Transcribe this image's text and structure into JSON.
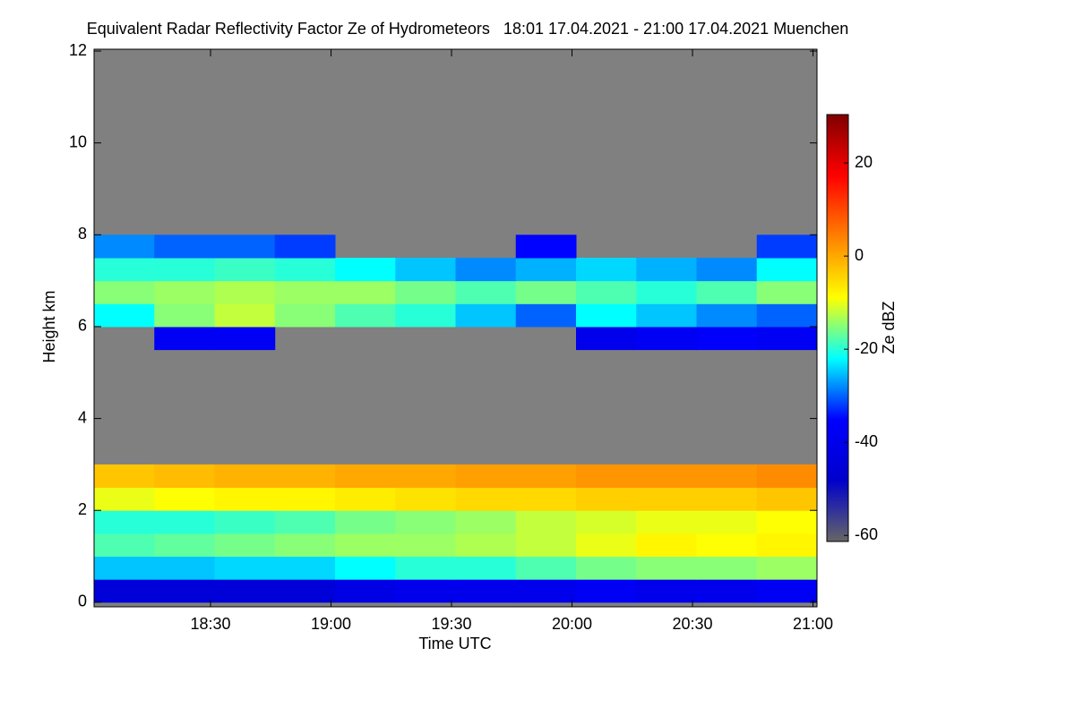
{
  "chart_data": {
    "type": "heatmap",
    "title": "Equivalent Radar Reflectivity Factor Ze of Hydrometeors   18:01 17.04.2021 - 21:00 17.04.2021 Muenchen",
    "x_label": "Time UTC",
    "y_label": "Height km",
    "colorbar_label": "Ze dBZ",
    "x": [
      1081,
      1096,
      1111,
      1126,
      1141,
      1156,
      1171,
      1186,
      1201,
      1216,
      1231,
      1246,
      1261
    ],
    "y": [
      0,
      0.5,
      1,
      1.5,
      2,
      2.5,
      3,
      3.5,
      4,
      4.5,
      5,
      5.5,
      6,
      6.5,
      7,
      7.5,
      8
    ],
    "z": [
      [
        -45,
        -45,
        -45,
        -45,
        -42,
        -40,
        -40,
        -40,
        -38,
        -40,
        -40,
        -38
      ],
      [
        -25,
        -25,
        -24,
        -24,
        -22,
        -20,
        -20,
        -18,
        -16,
        -15,
        -15,
        -14
      ],
      [
        -18,
        -17,
        -16,
        -15,
        -14,
        -14,
        -13,
        -12,
        -10,
        -8,
        -9,
        -8
      ],
      [
        -20,
        -20,
        -19,
        -18,
        -16,
        -15,
        -14,
        -12,
        -11,
        -10,
        -10,
        -9
      ],
      [
        -10,
        -9,
        -8,
        -8,
        -7,
        -6,
        -5,
        -5,
        -4,
        -4,
        -4,
        -3
      ],
      [
        -3,
        -2,
        -1,
        -1,
        0,
        0,
        1,
        1,
        2,
        2,
        2,
        3
      ],
      [
        null,
        null,
        null,
        null,
        null,
        null,
        null,
        null,
        null,
        null,
        null,
        null
      ],
      [
        null,
        null,
        null,
        null,
        null,
        null,
        null,
        null,
        null,
        null,
        null,
        null
      ],
      [
        null,
        null,
        null,
        null,
        null,
        null,
        null,
        null,
        null,
        null,
        null,
        null
      ],
      [
        null,
        null,
        null,
        null,
        null,
        null,
        null,
        null,
        null,
        null,
        null,
        null
      ],
      [
        null,
        null,
        null,
        null,
        null,
        null,
        null,
        null,
        null,
        null,
        null,
        null
      ],
      [
        null,
        -38,
        -38,
        null,
        null,
        null,
        null,
        null,
        -40,
        -38,
        -36,
        -38
      ],
      [
        -22,
        -15,
        -12,
        -15,
        -18,
        -20,
        -25,
        -30,
        -22,
        -25,
        -28,
        -30
      ],
      [
        -15,
        -14,
        -13,
        -14,
        -14,
        -16,
        -18,
        -16,
        -18,
        -20,
        -18,
        -15
      ],
      [
        -20,
        -20,
        -19,
        -20,
        -22,
        -25,
        -28,
        -26,
        -24,
        -26,
        -28,
        -22
      ],
      [
        -28,
        -30,
        -30,
        -32,
        null,
        null,
        null,
        -35,
        null,
        null,
        null,
        -32
      ]
    ],
    "xlim": [
      1081,
      1261
    ],
    "xticks": [
      {
        "value": 1110,
        "label": "18:30"
      },
      {
        "value": 1140,
        "label": "19:00"
      },
      {
        "value": 1170,
        "label": "19:30"
      },
      {
        "value": 1200,
        "label": "20:00"
      },
      {
        "value": 1230,
        "label": "20:30"
      },
      {
        "value": 1260,
        "label": "21:00"
      }
    ],
    "ylim": [
      -0.1,
      12.04
    ],
    "yticks": [
      0,
      2,
      4,
      6,
      8,
      10,
      12
    ],
    "clim": [
      -61.3,
      30.4
    ],
    "cticks": [
      -60,
      -40,
      -20,
      0,
      20
    ],
    "colorscale": [
      "#666666",
      "#0000cc",
      "#0000ff",
      "#00ffff",
      "#ffff00",
      "#ff8000",
      "#ff0000",
      "#800000"
    ],
    "background_color": "#808080"
  }
}
